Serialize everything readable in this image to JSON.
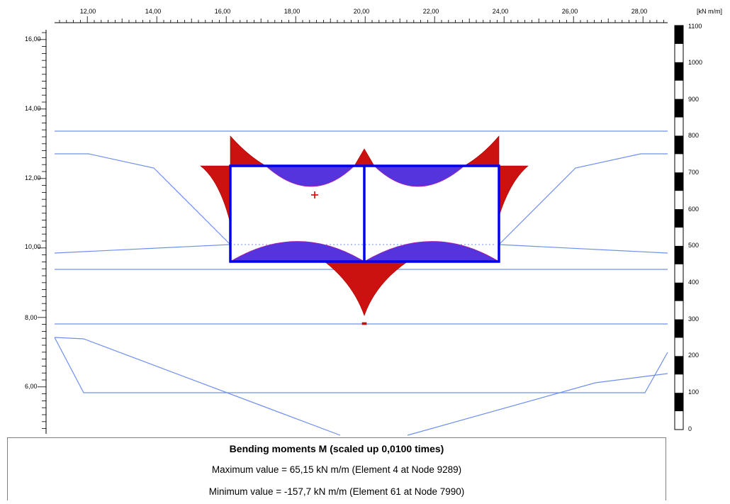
{
  "x_axis": {
    "ticks": [
      "12,00",
      "14,00",
      "16,00",
      "18,00",
      "20,00",
      "22,00",
      "24,00",
      "26,00",
      "28,00"
    ]
  },
  "y_axis": {
    "ticks": [
      "16,00",
      "14,00",
      "12,00",
      "10,00",
      "8,00",
      "6,00"
    ]
  },
  "color_scale": {
    "unit": "[kN m/m]",
    "labels": [
      "1100",
      "1000",
      "900",
      "800",
      "700",
      "600",
      "500",
      "400",
      "300",
      "200",
      "100",
      "0"
    ]
  },
  "result_box": {
    "title": "Bending moments M (scaled up 0,0100 times)",
    "max_line": "Maximum value = 65,15 kN m/m (Element 4 at Node 9289)",
    "min_line": "Minimum value = -157,7 kN m/m (Element 61 at Node 7990)"
  },
  "colors": {
    "structure": "#0000ee",
    "positive_moment": "#5533dd",
    "negative_moment": "#cc1111",
    "soil_lines": "#6f8fef"
  }
}
